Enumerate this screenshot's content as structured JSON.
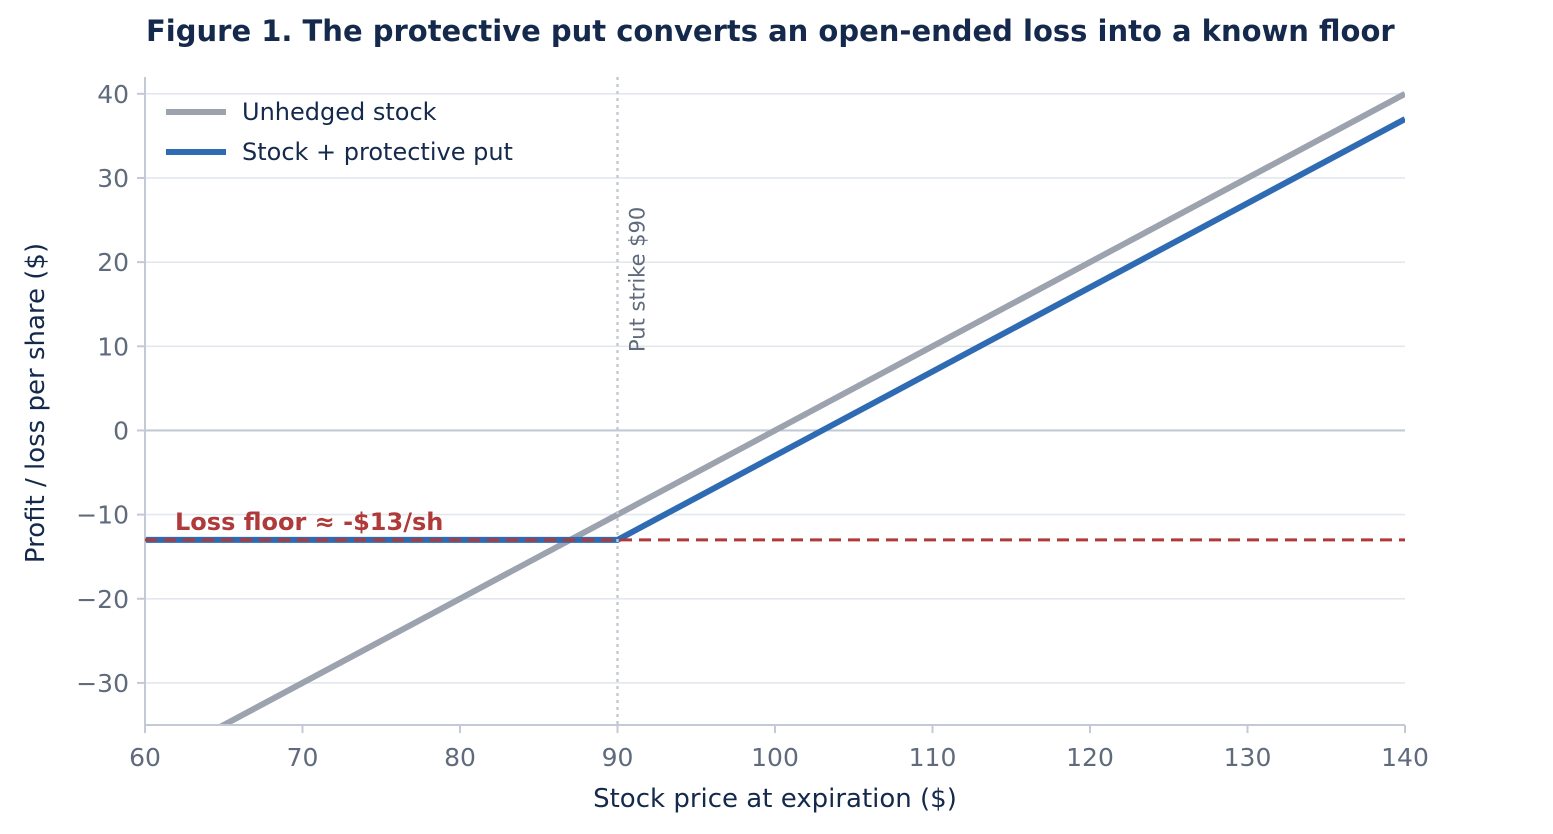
{
  "title": "Figure 1.  The protective put converts an open-ended loss into a known floor",
  "chart_data": {
    "type": "line",
    "title": "Figure 1.  The protective put converts an open-ended loss into a known floor",
    "xlabel": "Stock price at expiration ($)",
    "ylabel": "Profit / loss per share ($)",
    "xlim": [
      60,
      140
    ],
    "ylim": [
      -35,
      42
    ],
    "x_ticks": [
      60,
      70,
      80,
      90,
      100,
      110,
      120,
      130,
      140
    ],
    "y_ticks": [
      -30,
      -20,
      -10,
      0,
      10,
      20,
      30,
      40
    ],
    "y_tick_labels": [
      "−30",
      "−20",
      "−10",
      "0",
      "10",
      "20",
      "30",
      "40"
    ],
    "grid": "horizontal",
    "legend_position": "top-left",
    "series": [
      {
        "name": "Unhedged stock",
        "color": "#9ca3af",
        "x": [
          60,
          140
        ],
        "y": [
          -40,
          40
        ]
      },
      {
        "name": "Stock + protective put",
        "color": "#2f6bb3",
        "x": [
          60,
          90,
          140
        ],
        "y": [
          -13,
          -13,
          37
        ]
      }
    ],
    "reference_lines": {
      "strike": {
        "x": 90,
        "label": "Put strike $90",
        "color": "#c4c9d2"
      },
      "floor": {
        "y": -13,
        "label": "Loss floor  ≈  -$13/sh",
        "color": "#b03a3a"
      }
    }
  }
}
